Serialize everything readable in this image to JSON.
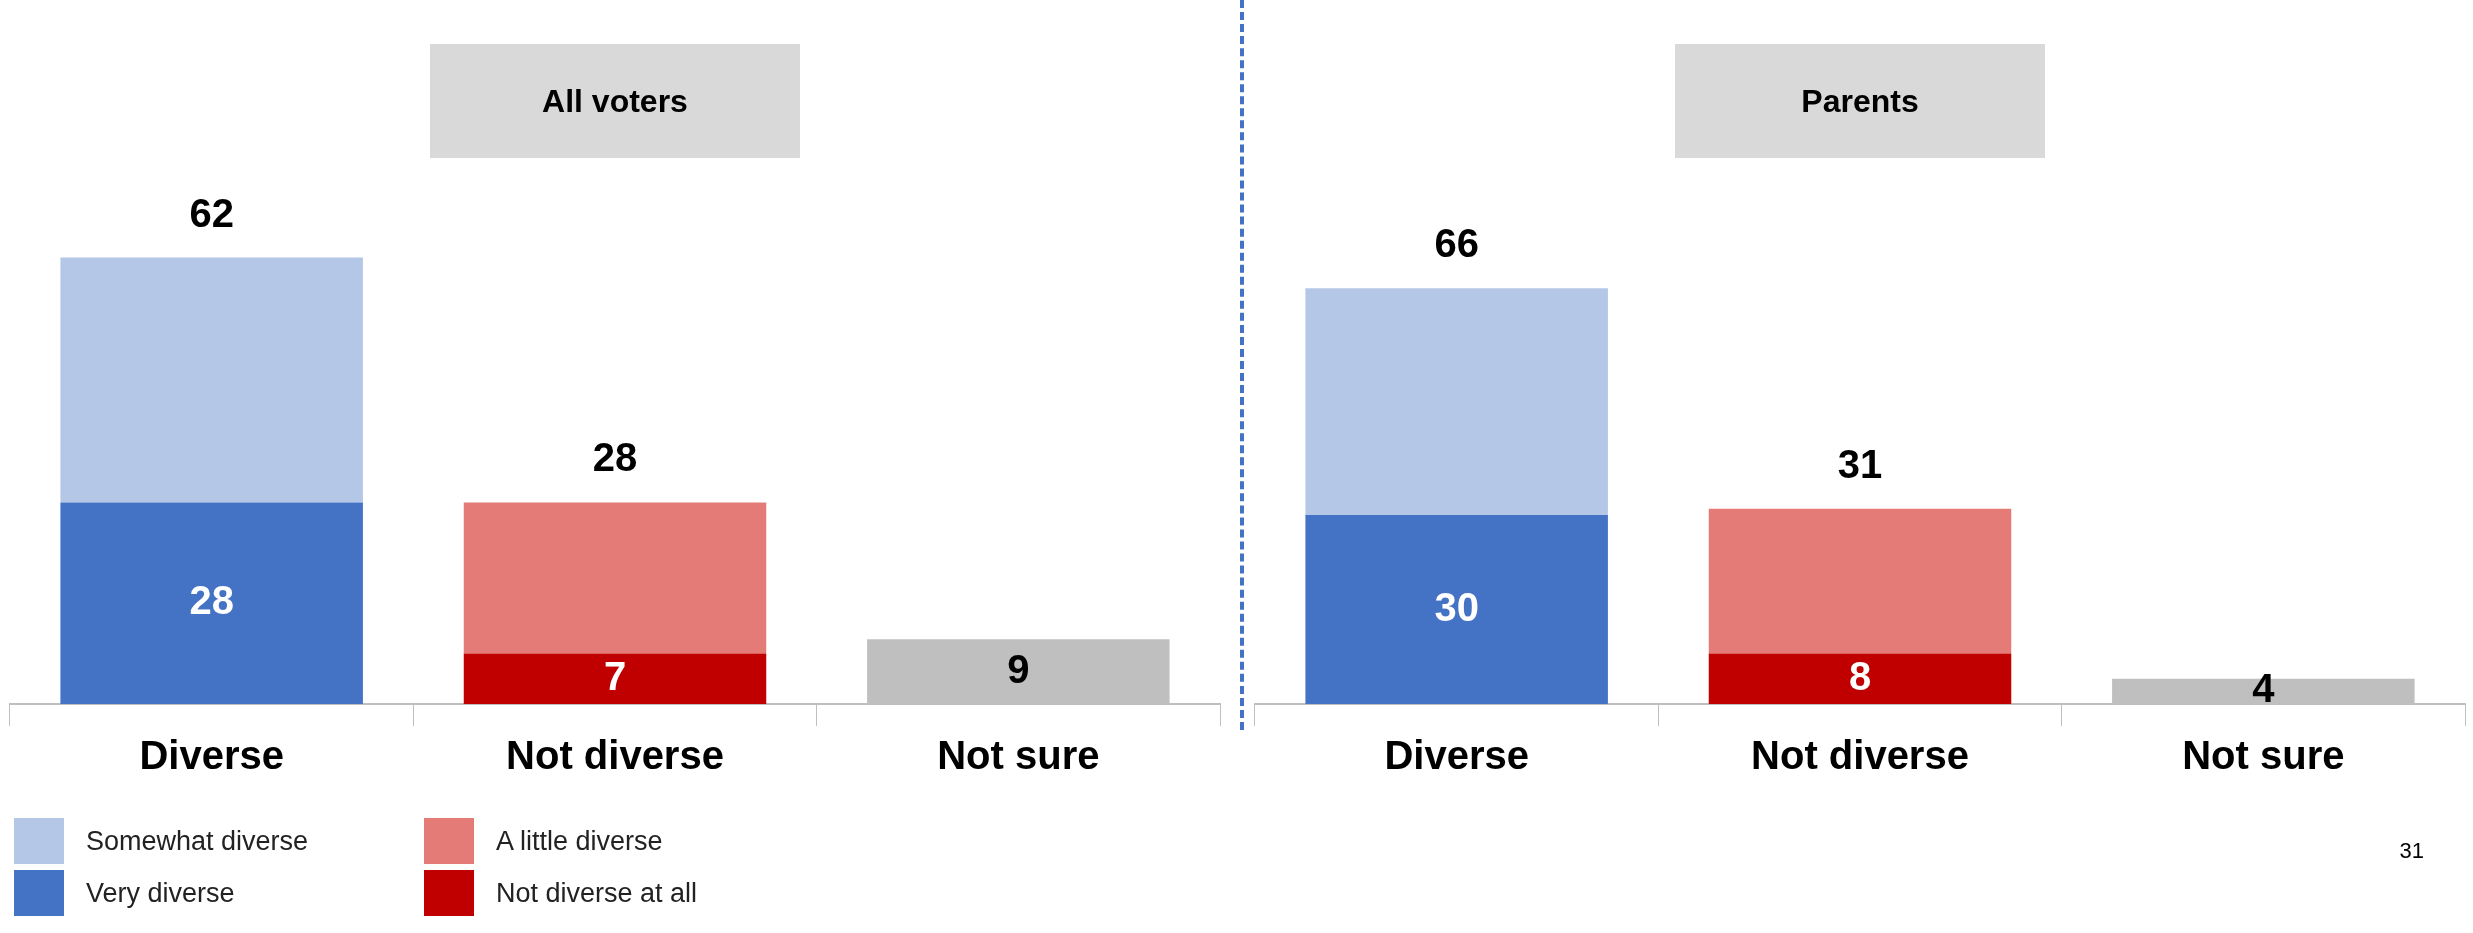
{
  "chart_data": [
    {
      "type": "bar",
      "title": "All voters",
      "stacked": true,
      "categories": [
        "Diverse",
        "Not diverse",
        "Not sure"
      ],
      "legend": "bottom left",
      "tick_labels": "x",
      "series": [
        {
          "name": "Very diverse",
          "color": "#4472c4",
          "values": [
            28,
            null,
            null
          ],
          "value_labels": [
            "28",
            null,
            null
          ]
        },
        {
          "name": "Somewhat diverse",
          "color": "#b4c7e7",
          "values": [
            34,
            null,
            null
          ]
        },
        {
          "name": "Not diverse at all",
          "color": "#c00000",
          "values": [
            null,
            7,
            null
          ],
          "value_labels": [
            null,
            "7",
            null
          ]
        },
        {
          "name": "A little diverse",
          "color": "#e57b76",
          "values": [
            null,
            21,
            null
          ]
        },
        {
          "color": "#bfbfbf",
          "values": [
            null,
            null,
            9
          ],
          "value_labels": [
            null,
            null,
            "9"
          ]
        }
      ],
      "totals": [
        "62",
        "28",
        null
      ]
    },
    {
      "type": "bar",
      "title": "Parents",
      "stacked": true,
      "categories": [
        "Diverse",
        "Not diverse",
        "Not sure"
      ],
      "legend": false,
      "tick_labels": "x",
      "series": [
        {
          "color": "#4472c4",
          "values": [
            30,
            null,
            null
          ],
          "value_labels": [
            "30",
            null,
            null
          ]
        },
        {
          "color": "#b4c7e7",
          "values": [
            36,
            null,
            null
          ]
        },
        {
          "color": "#c00000",
          "values": [
            null,
            8,
            null
          ],
          "value_labels": [
            null,
            "8",
            null
          ]
        },
        {
          "color": "#e57b76",
          "values": [
            null,
            23,
            null
          ]
        },
        {
          "color": "#bfbfbf",
          "values": [
            null,
            null,
            4
          ],
          "value_labels": [
            null,
            null,
            "4"
          ]
        }
      ],
      "totals": [
        "66",
        "31",
        null
      ],
      "annotations": [
        "31"
      ]
    }
  ]
}
